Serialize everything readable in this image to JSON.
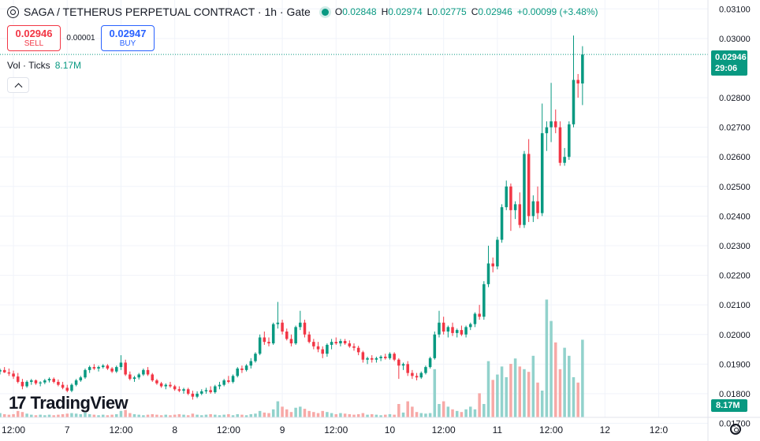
{
  "legend": {
    "title": "SAGA / TETHERUS PERPETUAL CONTRACT · 1h · Gate",
    "o_label": "O",
    "o_value": "0.02848",
    "h_label": "H",
    "h_value": "0.02974",
    "l_label": "L",
    "l_value": "0.02775",
    "c_label": "C",
    "c_value": "0.02946",
    "change": "+0.00099 (+3.48%)"
  },
  "trade": {
    "sell_price": "0.02946",
    "sell_label": "SELL",
    "spread": "0.00001",
    "buy_price": "0.02947",
    "buy_label": "BUY"
  },
  "volume_legend": {
    "label": "Vol · Ticks",
    "value": "8.17M"
  },
  "brand": {
    "name": "TradingView",
    "mark": "17"
  },
  "price_tag": {
    "price": "0.02946",
    "countdown": "29:06"
  },
  "volume_tag": "8.17M",
  "colors": {
    "up": "#089981",
    "down": "#f23645",
    "up_vol": "#92d2cc",
    "down_vol": "#f7a9a7",
    "grid": "#f0f3fa"
  },
  "chart_data": {
    "type": "candlestick",
    "interval": "1h",
    "y_axis": {
      "range": [
        0.0172,
        0.0313
      ],
      "ticks": [
        "0.03100",
        "0.03000",
        "0.02800",
        "0.02700",
        "0.02600",
        "0.02500",
        "0.02400",
        "0.02300",
        "0.02200",
        "0.02100",
        "0.02000",
        "0.01900",
        "0.01800",
        "0.01700"
      ]
    },
    "x_axis": {
      "range": [
        0,
        158
      ],
      "ticks": [
        {
          "label": "12:00",
          "x": 3
        },
        {
          "label": "7",
          "x": 15
        },
        {
          "label": "12:00",
          "x": 27
        },
        {
          "label": "8",
          "x": 39
        },
        {
          "label": "12:00",
          "x": 51
        },
        {
          "label": "9",
          "x": 63
        },
        {
          "label": "12:00",
          "x": 75
        },
        {
          "label": "10",
          "x": 87
        },
        {
          "label": "12:00",
          "x": 99
        },
        {
          "label": "11",
          "x": 111
        },
        {
          "label": "12:00",
          "x": 123
        },
        {
          "label": "12",
          "x": 135
        },
        {
          "label": "12:0",
          "x": 147
        }
      ]
    },
    "candles": [
      [
        0.01875,
        0.01885,
        0.01865,
        0.0188
      ],
      [
        0.0188,
        0.0189,
        0.0187,
        0.01872
      ],
      [
        0.01872,
        0.01885,
        0.0186,
        0.01868
      ],
      [
        0.01868,
        0.01878,
        0.0185,
        0.01858
      ],
      [
        0.01858,
        0.0187,
        0.01835,
        0.0184
      ],
      [
        0.0184,
        0.0185,
        0.01815,
        0.01825
      ],
      [
        0.01825,
        0.01845,
        0.0182,
        0.0184
      ],
      [
        0.0184,
        0.0185,
        0.0183,
        0.01845
      ],
      [
        0.01845,
        0.01848,
        0.0183,
        0.01835
      ],
      [
        0.01835,
        0.01842,
        0.01825,
        0.01838
      ],
      [
        0.01838,
        0.0185,
        0.01832,
        0.01845
      ],
      [
        0.01845,
        0.01855,
        0.01838,
        0.0185
      ],
      [
        0.0185,
        0.01855,
        0.01835,
        0.0184
      ],
      [
        0.0184,
        0.01848,
        0.01825,
        0.0183
      ],
      [
        0.0183,
        0.0184,
        0.01815,
        0.0182
      ],
      [
        0.0182,
        0.0183,
        0.01805,
        0.0181
      ],
      [
        0.0181,
        0.01835,
        0.01805,
        0.0183
      ],
      [
        0.0183,
        0.0185,
        0.01825,
        0.01845
      ],
      [
        0.01845,
        0.0186,
        0.0184,
        0.01855
      ],
      [
        0.01855,
        0.01885,
        0.0185,
        0.0188
      ],
      [
        0.0188,
        0.01895,
        0.0187,
        0.0189
      ],
      [
        0.0189,
        0.019,
        0.0188,
        0.01885
      ],
      [
        0.01885,
        0.01895,
        0.01875,
        0.0189
      ],
      [
        0.0189,
        0.019,
        0.01885,
        0.01895
      ],
      [
        0.01895,
        0.019,
        0.0188,
        0.01885
      ],
      [
        0.01885,
        0.0189,
        0.0187,
        0.01875
      ],
      [
        0.01875,
        0.01895,
        0.0187,
        0.0189
      ],
      [
        0.0189,
        0.0193,
        0.0188,
        0.01905
      ],
      [
        0.01905,
        0.01915,
        0.0186,
        0.01865
      ],
      [
        0.01865,
        0.01875,
        0.01845,
        0.0185
      ],
      [
        0.0185,
        0.0186,
        0.0184,
        0.01855
      ],
      [
        0.01855,
        0.0187,
        0.01848,
        0.01865
      ],
      [
        0.01865,
        0.01885,
        0.0186,
        0.0188
      ],
      [
        0.0188,
        0.0189,
        0.0186,
        0.01865
      ],
      [
        0.01865,
        0.0187,
        0.0184,
        0.01845
      ],
      [
        0.01845,
        0.0185,
        0.0183,
        0.01835
      ],
      [
        0.01835,
        0.0184,
        0.0182,
        0.01825
      ],
      [
        0.01825,
        0.01835,
        0.01815,
        0.0183
      ],
      [
        0.0183,
        0.0184,
        0.0182,
        0.01825
      ],
      [
        0.01825,
        0.0183,
        0.0181,
        0.01815
      ],
      [
        0.01815,
        0.01825,
        0.01805,
        0.0181
      ],
      [
        0.0181,
        0.0182,
        0.018,
        0.01815
      ],
      [
        0.01815,
        0.0182,
        0.01795,
        0.018
      ],
      [
        0.018,
        0.0181,
        0.0178,
        0.0179
      ],
      [
        0.0179,
        0.01808,
        0.01785,
        0.018
      ],
      [
        0.018,
        0.01815,
        0.01795,
        0.01808
      ],
      [
        0.01808,
        0.0182,
        0.018,
        0.01812
      ],
      [
        0.01812,
        0.01825,
        0.018,
        0.01805
      ],
      [
        0.01805,
        0.0183,
        0.018,
        0.01825
      ],
      [
        0.01825,
        0.0184,
        0.01815,
        0.0183
      ],
      [
        0.0183,
        0.0185,
        0.01825,
        0.01845
      ],
      [
        0.01845,
        0.0186,
        0.01835,
        0.0184
      ],
      [
        0.0184,
        0.01865,
        0.01835,
        0.0186
      ],
      [
        0.0186,
        0.0189,
        0.01855,
        0.01885
      ],
      [
        0.01885,
        0.01895,
        0.0187,
        0.0188
      ],
      [
        0.0188,
        0.019,
        0.01875,
        0.01895
      ],
      [
        0.01895,
        0.0192,
        0.01885,
        0.0191
      ],
      [
        0.0191,
        0.0194,
        0.01905,
        0.01935
      ],
      [
        0.01935,
        0.02,
        0.0193,
        0.0199
      ],
      [
        0.0199,
        0.0201,
        0.01965,
        0.01975
      ],
      [
        0.01975,
        0.0199,
        0.0196,
        0.0197
      ],
      [
        0.0197,
        0.0204,
        0.01965,
        0.02035
      ],
      [
        0.02035,
        0.0211,
        0.0202,
        0.0204
      ],
      [
        0.0204,
        0.0205,
        0.02,
        0.0201
      ],
      [
        0.0201,
        0.0202,
        0.0198,
        0.01985
      ],
      [
        0.01985,
        0.02,
        0.0196,
        0.0197
      ],
      [
        0.0197,
        0.0203,
        0.01965,
        0.02025
      ],
      [
        0.02025,
        0.0208,
        0.02015,
        0.0204
      ],
      [
        0.0204,
        0.0205,
        0.0199,
        0.02
      ],
      [
        0.02,
        0.0201,
        0.0197,
        0.01975
      ],
      [
        0.01975,
        0.01985,
        0.0195,
        0.0196
      ],
      [
        0.0196,
        0.01975,
        0.0194,
        0.0195
      ],
      [
        0.0195,
        0.0196,
        0.0192,
        0.01935
      ],
      [
        0.01935,
        0.0197,
        0.01925,
        0.01965
      ],
      [
        0.01965,
        0.01985,
        0.0195,
        0.01975
      ],
      [
        0.01975,
        0.0199,
        0.01965,
        0.0197
      ],
      [
        0.0197,
        0.01985,
        0.0196,
        0.01978
      ],
      [
        0.01978,
        0.01985,
        0.01965,
        0.0197
      ],
      [
        0.0197,
        0.0198,
        0.01955,
        0.0196
      ],
      [
        0.0196,
        0.0197,
        0.01945,
        0.01955
      ],
      [
        0.01955,
        0.01962,
        0.0193,
        0.0194
      ],
      [
        0.0194,
        0.01945,
        0.01905,
        0.01915
      ],
      [
        0.01915,
        0.01925,
        0.019,
        0.0192
      ],
      [
        0.0192,
        0.0193,
        0.01905,
        0.01915
      ],
      [
        0.01915,
        0.01925,
        0.01905,
        0.0192
      ],
      [
        0.0192,
        0.0193,
        0.0191,
        0.01925
      ],
      [
        0.01925,
        0.01935,
        0.01915,
        0.0192
      ],
      [
        0.0192,
        0.0194,
        0.01915,
        0.01935
      ],
      [
        0.01935,
        0.0194,
        0.0191,
        0.01915
      ],
      [
        0.01915,
        0.0192,
        0.0185,
        0.01895
      ],
      [
        0.01895,
        0.01905,
        0.0188,
        0.019
      ],
      [
        0.019,
        0.0191,
        0.0186,
        0.0187
      ],
      [
        0.0187,
        0.0188,
        0.0185,
        0.0186
      ],
      [
        0.0186,
        0.0187,
        0.01845,
        0.01855
      ],
      [
        0.01855,
        0.01875,
        0.0185,
        0.0187
      ],
      [
        0.0187,
        0.01895,
        0.01865,
        0.0189
      ],
      [
        0.0189,
        0.01925,
        0.01885,
        0.0192
      ],
      [
        0.0192,
        0.0201,
        0.01915,
        0.02
      ],
      [
        0.02,
        0.0208,
        0.0199,
        0.0204
      ],
      [
        0.0204,
        0.0206,
        0.02,
        0.0201
      ],
      [
        0.0201,
        0.0203,
        0.0199,
        0.02025
      ],
      [
        0.02025,
        0.0204,
        0.01995,
        0.02005
      ],
      [
        0.02005,
        0.0202,
        0.0199,
        0.02015
      ],
      [
        0.02015,
        0.0203,
        0.01995,
        0.02
      ],
      [
        0.02,
        0.0203,
        0.0199,
        0.02025
      ],
      [
        0.02025,
        0.0204,
        0.02015,
        0.02035
      ],
      [
        0.02035,
        0.02075,
        0.02025,
        0.0207
      ],
      [
        0.0207,
        0.021,
        0.0205,
        0.0206
      ],
      [
        0.0206,
        0.0218,
        0.0205,
        0.0217
      ],
      [
        0.0217,
        0.023,
        0.0216,
        0.0224
      ],
      [
        0.0224,
        0.0226,
        0.0221,
        0.0223
      ],
      [
        0.0223,
        0.0233,
        0.0222,
        0.0232
      ],
      [
        0.0232,
        0.0244,
        0.0231,
        0.0243
      ],
      [
        0.0243,
        0.0252,
        0.0242,
        0.025
      ],
      [
        0.025,
        0.0251,
        0.0235,
        0.0242
      ],
      [
        0.0242,
        0.0245,
        0.0239,
        0.0244
      ],
      [
        0.0244,
        0.0248,
        0.0236,
        0.0237
      ],
      [
        0.0237,
        0.0262,
        0.0236,
        0.0261
      ],
      [
        0.0261,
        0.0266,
        0.0238,
        0.024
      ],
      [
        0.024,
        0.0247,
        0.0238,
        0.0245
      ],
      [
        0.0245,
        0.025,
        0.0239,
        0.0241
      ],
      [
        0.0241,
        0.0278,
        0.024,
        0.0268
      ],
      [
        0.0268,
        0.0272,
        0.0262,
        0.027
      ],
      [
        0.027,
        0.0285,
        0.0265,
        0.0272
      ],
      [
        0.0272,
        0.0276,
        0.0268,
        0.027
      ],
      [
        0.027,
        0.0272,
        0.0257,
        0.0258
      ],
      [
        0.0258,
        0.0263,
        0.0257,
        0.026
      ],
      [
        0.026,
        0.0272,
        0.0259,
        0.0271
      ],
      [
        0.0271,
        0.0301,
        0.027,
        0.0286
      ],
      [
        0.0286,
        0.0288,
        0.028,
        0.02848
      ],
      [
        0.02848,
        0.02974,
        0.02775,
        0.02946
      ]
    ],
    "volumes_m": [
      0.8,
      0.6,
      0.5,
      0.6,
      1.2,
      1.0,
      0.7,
      0.5,
      0.4,
      0.5,
      0.4,
      0.5,
      0.4,
      0.5,
      0.6,
      0.7,
      0.8,
      0.7,
      0.6,
      0.9,
      0.6,
      0.5,
      0.4,
      0.5,
      0.4,
      0.5,
      0.6,
      1.2,
      1.4,
      0.8,
      0.6,
      0.5,
      0.4,
      0.5,
      0.6,
      0.5,
      0.4,
      0.5,
      0.4,
      0.5,
      0.6,
      0.5,
      0.4,
      0.7,
      0.5,
      0.4,
      0.5,
      0.6,
      0.5,
      0.4,
      0.5,
      0.6,
      0.4,
      0.6,
      0.5,
      0.4,
      0.6,
      0.7,
      1.2,
      0.9,
      0.8,
      1.5,
      3.0,
      2.0,
      1.5,
      1.0,
      1.8,
      2.0,
      1.6,
      1.2,
      1.0,
      0.8,
      1.2,
      1.0,
      0.8,
      0.6,
      0.8,
      0.7,
      0.6,
      0.5,
      0.6,
      0.8,
      0.5,
      0.6,
      0.5,
      0.4,
      0.5,
      0.6,
      0.5,
      2.5,
      0.9,
      3.0,
      2.0,
      1.0,
      0.8,
      0.7,
      0.8,
      9.0,
      2.5,
      3.0,
      2.0,
      1.5,
      1.2,
      1.0,
      1.5,
      2.0,
      1.5,
      4.5,
      2.5,
      10.5,
      7.0,
      8.0,
      9.5,
      7.5,
      10.0,
      11.0,
      9.5,
      9.0,
      8.5,
      11.5,
      6.5,
      5.0,
      22.0,
      18.0,
      14.0,
      9.0,
      13.0,
      11.5,
      7.5,
      6.5,
      14.5,
      14.0,
      8.17
    ],
    "volume_range": [
      0,
      50
    ]
  }
}
